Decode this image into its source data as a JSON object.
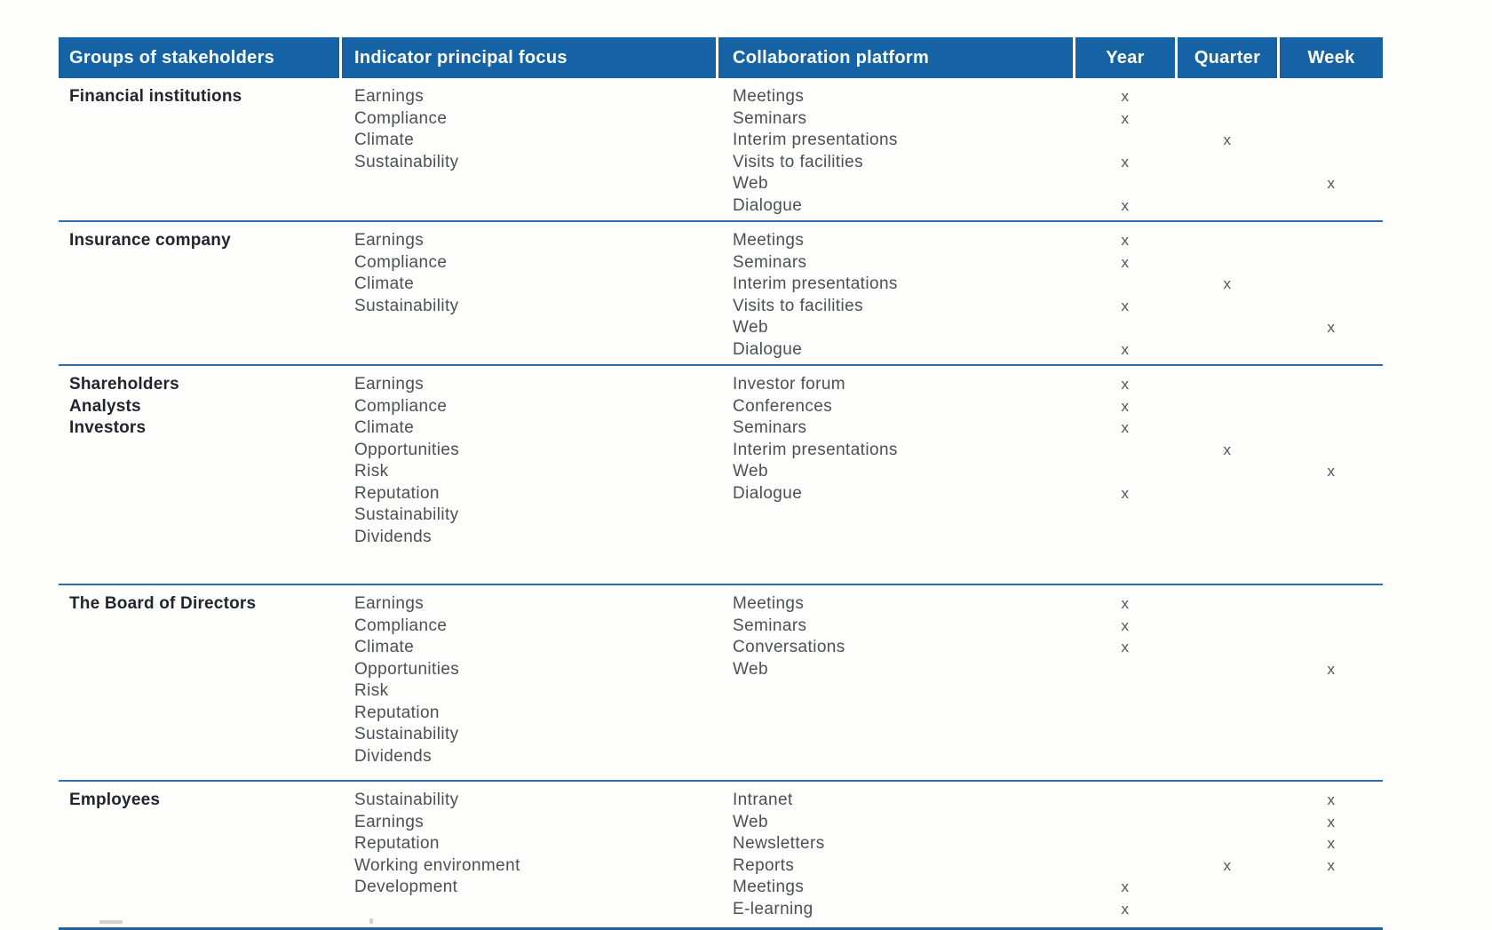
{
  "colors": {
    "header_bg": "#1563A5",
    "header_text": "#FFFFFF",
    "separator": "#2E6DA8",
    "body_text": "#4C4F55",
    "group_text": "#22252D",
    "mark_text": "#515459"
  },
  "table": {
    "mark": "x",
    "columns": [
      {
        "label": "Groups of stakeholders"
      },
      {
        "label": "Indicator principal focus"
      },
      {
        "label": "Collaboration platform"
      },
      {
        "label": "Year"
      },
      {
        "label": "Quarter"
      },
      {
        "label": "Week"
      }
    ],
    "rows": [
      {
        "group": [
          "Financial institutions"
        ],
        "indicators": [
          "Earnings",
          "Compliance",
          "Climate",
          "Sustainability"
        ],
        "platforms": [
          {
            "name": "Meetings",
            "year": true,
            "quarter": false,
            "week": false
          },
          {
            "name": "Seminars",
            "year": true,
            "quarter": false,
            "week": false
          },
          {
            "name": "Interim presentations",
            "year": false,
            "quarter": true,
            "week": false
          },
          {
            "name": "Visits to facilities",
            "year": true,
            "quarter": false,
            "week": false
          },
          {
            "name": "Web",
            "year": false,
            "quarter": false,
            "week": true
          },
          {
            "name": "Dialogue",
            "year": true,
            "quarter": false,
            "week": false
          }
        ]
      },
      {
        "group": [
          "Insurance company"
        ],
        "indicators": [
          "Earnings",
          "Compliance",
          "Climate",
          "Sustainability"
        ],
        "platforms": [
          {
            "name": "Meetings",
            "year": true,
            "quarter": false,
            "week": false
          },
          {
            "name": "Seminars",
            "year": true,
            "quarter": false,
            "week": false
          },
          {
            "name": "Interim presentations",
            "year": false,
            "quarter": true,
            "week": false
          },
          {
            "name": "Visits to facilities",
            "year": true,
            "quarter": false,
            "week": false
          },
          {
            "name": "Web",
            "year": false,
            "quarter": false,
            "week": true
          },
          {
            "name": "Dialogue",
            "year": true,
            "quarter": false,
            "week": false
          }
        ]
      },
      {
        "group": [
          "Shareholders",
          "Analysts",
          "Investors"
        ],
        "indicators": [
          "Earnings",
          "Compliance",
          "Climate",
          "Opportunities",
          "Risk",
          "Reputation",
          "Sustainability",
          "Dividends"
        ],
        "platforms": [
          {
            "name": "Investor forum",
            "year": true,
            "quarter": false,
            "week": false
          },
          {
            "name": "Conferences",
            "year": true,
            "quarter": false,
            "week": false
          },
          {
            "name": "Seminars",
            "year": true,
            "quarter": false,
            "week": false
          },
          {
            "name": "Interim presentations",
            "year": false,
            "quarter": true,
            "week": false
          },
          {
            "name": "Web",
            "year": false,
            "quarter": false,
            "week": true
          },
          {
            "name": "Dialogue",
            "year": true,
            "quarter": false,
            "week": false
          }
        ]
      },
      {
        "group": [
          "The Board of Directors"
        ],
        "indicators": [
          "Earnings",
          "Compliance",
          "Climate",
          "Opportunities",
          "Risk",
          "Reputation",
          "Sustainability",
          "Dividends"
        ],
        "platforms": [
          {
            "name": "Meetings",
            "year": true,
            "quarter": false,
            "week": false
          },
          {
            "name": "Seminars",
            "year": true,
            "quarter": false,
            "week": false
          },
          {
            "name": "Conversations",
            "year": true,
            "quarter": false,
            "week": false
          },
          {
            "name": "Web",
            "year": false,
            "quarter": false,
            "week": true
          }
        ]
      },
      {
        "group": [
          "Employees"
        ],
        "indicators": [
          "Sustainability",
          "Earnings",
          "Reputation",
          "Working environment",
          "Development"
        ],
        "platforms": [
          {
            "name": "Intranet",
            "year": false,
            "quarter": false,
            "week": true
          },
          {
            "name": "Web",
            "year": false,
            "quarter": false,
            "week": true
          },
          {
            "name": "Newsletters",
            "year": false,
            "quarter": false,
            "week": true
          },
          {
            "name": "Reports",
            "year": false,
            "quarter": true,
            "week": true
          },
          {
            "name": "Meetings",
            "year": true,
            "quarter": false,
            "week": false
          },
          {
            "name": "E-learning",
            "year": true,
            "quarter": false,
            "week": false
          }
        ]
      }
    ]
  }
}
